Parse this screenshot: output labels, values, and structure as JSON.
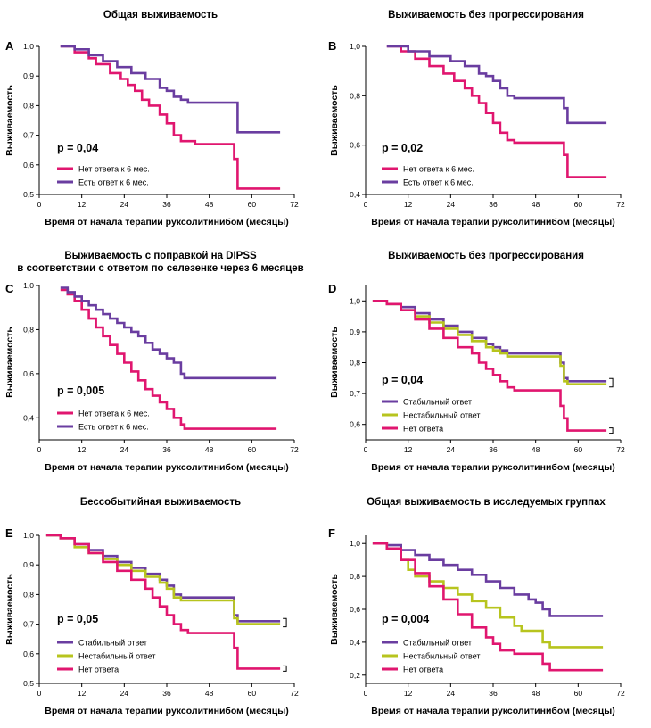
{
  "colors": {
    "red": "#E0166F",
    "purple": "#6A3DA0",
    "yellow": "#B7C41E"
  },
  "chart_data": [
    {
      "type": "line",
      "panel": "A",
      "title": [
        "Общая выживаемость"
      ],
      "xlabel": "Время от начала терапии руксолитинибом (месяцы)",
      "ylabel": "Выживаемость",
      "xlim": [
        0,
        72
      ],
      "ylim": [
        0.5,
        1.0
      ],
      "xticks": [
        0,
        12,
        24,
        36,
        48,
        60,
        72
      ],
      "yticks": [
        0.5,
        0.6,
        0.7,
        0.8,
        0.9,
        1.0
      ],
      "ytick_labels": [
        "0,5",
        "0,6",
        "0,7",
        "0,8",
        "0,9",
        "1,0"
      ],
      "pvalue": "p = 0,04",
      "series": [
        {
          "name": "Нет ответа к 6 мес.",
          "color": "red",
          "x": [
            6,
            10,
            14,
            16,
            20,
            23,
            25,
            27,
            29,
            31,
            34,
            36,
            38,
            40,
            44,
            48,
            52,
            55,
            56,
            68
          ],
          "y": [
            1.0,
            0.98,
            0.96,
            0.94,
            0.91,
            0.89,
            0.87,
            0.85,
            0.82,
            0.8,
            0.77,
            0.74,
            0.7,
            0.68,
            0.67,
            0.67,
            0.67,
            0.62,
            0.52,
            0.52
          ]
        },
        {
          "name": "Есть ответ к 6 мес.",
          "color": "purple",
          "x": [
            6,
            10,
            14,
            18,
            22,
            26,
            30,
            34,
            36,
            38,
            40,
            42,
            44,
            48,
            52,
            56,
            68
          ],
          "y": [
            1.0,
            0.99,
            0.97,
            0.95,
            0.93,
            0.91,
            0.89,
            0.86,
            0.85,
            0.83,
            0.82,
            0.81,
            0.81,
            0.81,
            0.81,
            0.71,
            0.71
          ]
        }
      ]
    },
    {
      "type": "line",
      "panel": "B",
      "title": [
        "Выживаемость без прогрессирования"
      ],
      "xlabel": "Время от начала терапии руксолитинибом (месяцы)",
      "ylabel": "Выживаемость",
      "xlim": [
        0,
        72
      ],
      "ylim": [
        0.4,
        1.0
      ],
      "xticks": [
        0,
        12,
        24,
        36,
        48,
        60,
        72
      ],
      "yticks": [
        0.4,
        0.6,
        0.8,
        1.0
      ],
      "ytick_labels": [
        "0,4",
        "0,6",
        "0,8",
        "1,0"
      ],
      "pvalue": "p = 0,02",
      "series": [
        {
          "name": "Нет ответа к 6 мес.",
          "color": "red",
          "x": [
            6,
            10,
            14,
            18,
            22,
            25,
            28,
            30,
            32,
            34,
            36,
            38,
            40,
            42,
            48,
            54,
            56,
            57,
            68
          ],
          "y": [
            1.0,
            0.98,
            0.95,
            0.92,
            0.89,
            0.86,
            0.83,
            0.8,
            0.77,
            0.73,
            0.69,
            0.65,
            0.62,
            0.61,
            0.61,
            0.61,
            0.56,
            0.47,
            0.47
          ]
        },
        {
          "name": "Есть ответ к 6 мес.",
          "color": "purple",
          "x": [
            6,
            12,
            18,
            24,
            28,
            32,
            34,
            36,
            38,
            40,
            42,
            48,
            54,
            56,
            57,
            68
          ],
          "y": [
            1.0,
            0.98,
            0.96,
            0.94,
            0.92,
            0.89,
            0.88,
            0.86,
            0.83,
            0.8,
            0.79,
            0.79,
            0.79,
            0.75,
            0.69,
            0.69
          ]
        }
      ]
    },
    {
      "type": "line",
      "panel": "C",
      "title": [
        "Выживаемость с поправкой на DIPSS",
        "в соответствии с ответом по селезенке через 6 месяцев"
      ],
      "xlabel": "Время от начала терапии руксолитинибом (месяцы)",
      "ylabel": "Выживаемость",
      "xlim": [
        0,
        72
      ],
      "ylim": [
        0.3,
        1.0
      ],
      "xticks": [
        0,
        12,
        24,
        36,
        48,
        60,
        72
      ],
      "yticks": [
        0.4,
        0.6,
        0.8,
        1.0
      ],
      "ytick_labels": [
        "0,4",
        "0,6",
        "0,8",
        "1,0"
      ],
      "pvalue": "p = 0,005",
      "series": [
        {
          "name": "Нет ответа к 6 мес.",
          "color": "red",
          "x": [
            6,
            8,
            10,
            12,
            14,
            16,
            18,
            20,
            22,
            24,
            26,
            28,
            30,
            32,
            34,
            36,
            38,
            40,
            41,
            42,
            48,
            67
          ],
          "y": [
            0.98,
            0.96,
            0.93,
            0.89,
            0.85,
            0.81,
            0.77,
            0.73,
            0.69,
            0.65,
            0.61,
            0.57,
            0.53,
            0.5,
            0.47,
            0.44,
            0.4,
            0.37,
            0.35,
            0.35,
            0.35,
            0.35
          ]
        },
        {
          "name": "Есть ответ к 6 мес.",
          "color": "purple",
          "x": [
            6,
            8,
            10,
            12,
            14,
            16,
            18,
            20,
            22,
            24,
            26,
            28,
            30,
            32,
            34,
            36,
            38,
            40,
            41,
            42,
            48,
            67
          ],
          "y": [
            0.99,
            0.97,
            0.95,
            0.93,
            0.91,
            0.89,
            0.87,
            0.85,
            0.83,
            0.81,
            0.79,
            0.77,
            0.74,
            0.71,
            0.69,
            0.67,
            0.65,
            0.6,
            0.58,
            0.58,
            0.58,
            0.58
          ]
        }
      ]
    },
    {
      "type": "line",
      "panel": "D",
      "title": [
        "Выживаемость без прогрессирования"
      ],
      "xlabel": "Время от начала терапии руксолитинибом (месяцы)",
      "ylabel": "Выживаемость",
      "xlim": [
        0,
        72
      ],
      "ylim": [
        0.55,
        1.05
      ],
      "xticks": [
        0,
        12,
        24,
        36,
        48,
        60,
        72
      ],
      "yticks": [
        0.6,
        0.7,
        0.8,
        0.9,
        1.0
      ],
      "ytick_labels": [
        "0,6",
        "0,7",
        "0,8",
        "0,9",
        "1,0"
      ],
      "pvalue": "p = 0,04",
      "series": [
        {
          "name": "Стабильный ответ",
          "color": "purple",
          "x": [
            2,
            6,
            10,
            14,
            18,
            22,
            26,
            30,
            34,
            36,
            38,
            40,
            44,
            48,
            52,
            55,
            56,
            57,
            68
          ],
          "y": [
            1.0,
            0.99,
            0.98,
            0.96,
            0.94,
            0.92,
            0.9,
            0.88,
            0.86,
            0.85,
            0.84,
            0.83,
            0.83,
            0.83,
            0.83,
            0.8,
            0.75,
            0.74,
            0.74
          ]
        },
        {
          "name": "Нестабильный ответ",
          "color": "yellow",
          "x": [
            2,
            6,
            10,
            14,
            18,
            22,
            26,
            30,
            34,
            36,
            38,
            40,
            44,
            48,
            52,
            55,
            56,
            57,
            68
          ],
          "y": [
            1.0,
            0.99,
            0.97,
            0.95,
            0.93,
            0.91,
            0.89,
            0.87,
            0.85,
            0.84,
            0.83,
            0.82,
            0.82,
            0.82,
            0.82,
            0.79,
            0.74,
            0.73,
            0.73
          ]
        },
        {
          "name": "Нет ответа",
          "color": "red",
          "x": [
            2,
            6,
            10,
            14,
            18,
            22,
            26,
            30,
            32,
            34,
            36,
            38,
            40,
            42,
            44,
            48,
            52,
            55,
            56,
            57,
            68
          ],
          "y": [
            1.0,
            0.99,
            0.97,
            0.94,
            0.91,
            0.88,
            0.85,
            0.83,
            0.8,
            0.78,
            0.76,
            0.74,
            0.72,
            0.71,
            0.71,
            0.71,
            0.71,
            0.66,
            0.62,
            0.58,
            0.58
          ]
        }
      ]
    },
    {
      "type": "line",
      "panel": "E",
      "title": [
        "Бессобытийная выживаемость"
      ],
      "xlabel": "Время от начала терапии руксолитинибом (месяцы)",
      "ylabel": "Выживаемость",
      "xlim": [
        0,
        72
      ],
      "ylim": [
        0.5,
        1.0
      ],
      "xticks": [
        0,
        12,
        24,
        36,
        48,
        60,
        72
      ],
      "yticks": [
        0.5,
        0.6,
        0.7,
        0.8,
        0.9,
        1.0
      ],
      "ytick_labels": [
        "0,5",
        "0,6",
        "0,7",
        "0,8",
        "0,9",
        "1,0"
      ],
      "pvalue": "p = 0,05",
      "series": [
        {
          "name": "Стабильный ответ",
          "color": "purple",
          "x": [
            2,
            6,
            10,
            14,
            18,
            22,
            26,
            30,
            34,
            36,
            38,
            40,
            44,
            48,
            52,
            55,
            56,
            68
          ],
          "y": [
            1.0,
            0.99,
            0.97,
            0.95,
            0.93,
            0.91,
            0.89,
            0.87,
            0.85,
            0.83,
            0.8,
            0.79,
            0.79,
            0.79,
            0.79,
            0.73,
            0.71,
            0.71
          ]
        },
        {
          "name": "Нестабильный ответ",
          "color": "yellow",
          "x": [
            2,
            6,
            10,
            14,
            18,
            22,
            26,
            30,
            34,
            36,
            38,
            40,
            44,
            48,
            52,
            55,
            56,
            68
          ],
          "y": [
            1.0,
            0.99,
            0.96,
            0.94,
            0.92,
            0.9,
            0.88,
            0.86,
            0.84,
            0.82,
            0.79,
            0.78,
            0.78,
            0.78,
            0.78,
            0.72,
            0.7,
            0.7
          ]
        },
        {
          "name": "Нет ответа",
          "color": "red",
          "x": [
            2,
            6,
            10,
            14,
            18,
            22,
            26,
            30,
            32,
            34,
            36,
            38,
            40,
            42,
            44,
            48,
            52,
            55,
            56,
            68
          ],
          "y": [
            1.0,
            0.99,
            0.97,
            0.94,
            0.91,
            0.88,
            0.85,
            0.82,
            0.79,
            0.76,
            0.73,
            0.7,
            0.68,
            0.67,
            0.67,
            0.67,
            0.67,
            0.62,
            0.55,
            0.55
          ]
        }
      ]
    },
    {
      "type": "line",
      "panel": "F",
      "title": [
        "Общая выживаемость в исследуемых группах"
      ],
      "xlabel": "Время от начала терапии руксолитинибом (месяцы)",
      "ylabel": "Выживаемость",
      "xlim": [
        0,
        72
      ],
      "ylim": [
        0.15,
        1.05
      ],
      "xticks": [
        0,
        12,
        24,
        36,
        48,
        60,
        72
      ],
      "yticks": [
        0.2,
        0.4,
        0.6,
        0.8,
        1.0
      ],
      "ytick_labels": [
        "0,2",
        "0,4",
        "0,6",
        "0,8",
        "1,0"
      ],
      "pvalue": "p = 0,004",
      "series": [
        {
          "name": "Стабильный ответ",
          "color": "purple",
          "x": [
            2,
            6,
            10,
            14,
            18,
            22,
            26,
            30,
            34,
            38,
            42,
            46,
            48,
            50,
            52,
            56,
            67
          ],
          "y": [
            1.0,
            0.99,
            0.96,
            0.93,
            0.9,
            0.87,
            0.84,
            0.81,
            0.77,
            0.73,
            0.69,
            0.66,
            0.64,
            0.6,
            0.56,
            0.56,
            0.56
          ]
        },
        {
          "name": "Нестабильный ответ",
          "color": "yellow",
          "x": [
            2,
            6,
            10,
            12,
            14,
            18,
            22,
            26,
            30,
            34,
            38,
            42,
            44,
            46,
            48,
            50,
            52,
            56,
            67
          ],
          "y": [
            1.0,
            0.97,
            0.9,
            0.84,
            0.8,
            0.77,
            0.73,
            0.69,
            0.65,
            0.61,
            0.55,
            0.5,
            0.47,
            0.47,
            0.47,
            0.4,
            0.37,
            0.37,
            0.37
          ]
        },
        {
          "name": "Нет ответа",
          "color": "red",
          "x": [
            2,
            6,
            10,
            14,
            18,
            22,
            26,
            30,
            34,
            36,
            38,
            42,
            46,
            48,
            50,
            52,
            56,
            67
          ],
          "y": [
            1.0,
            0.97,
            0.9,
            0.82,
            0.74,
            0.66,
            0.57,
            0.49,
            0.43,
            0.39,
            0.35,
            0.33,
            0.33,
            0.33,
            0.27,
            0.23,
            0.23,
            0.23
          ]
        }
      ]
    }
  ]
}
